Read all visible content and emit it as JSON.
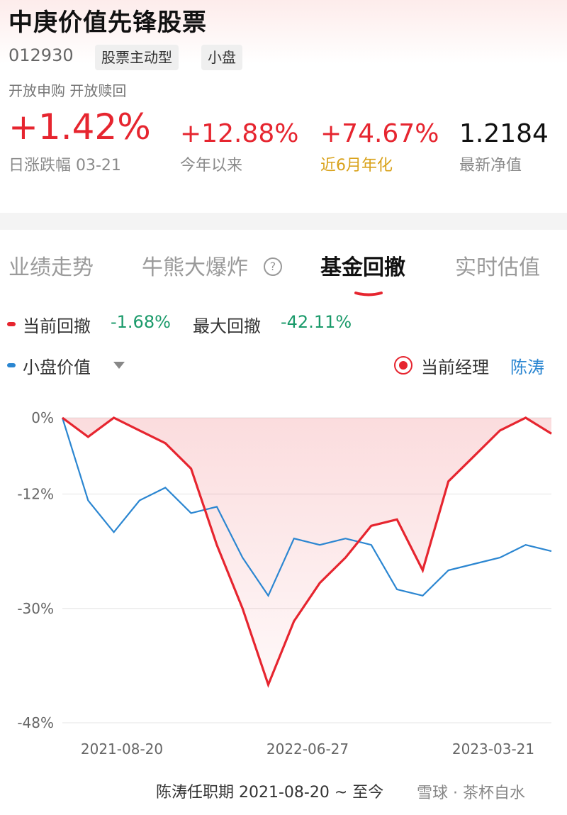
{
  "fund": {
    "name": "中庚价值先锋股票",
    "code": "012930",
    "tags": [
      "股票主动型",
      "小盘"
    ],
    "status": "开放申购 开放赎回"
  },
  "metrics": [
    {
      "value": "+1.42%",
      "label": "日涨跌幅 03-21"
    },
    {
      "value": "+12.88%",
      "label": "今年以来"
    },
    {
      "value": "+74.67%",
      "label": "近6月年化"
    },
    {
      "value": "1.2184",
      "label": "最新净值"
    }
  ],
  "tabs": [
    {
      "label": "业绩走势"
    },
    {
      "label": "牛熊大爆炸"
    },
    {
      "label": "基金回撤",
      "active": true
    },
    {
      "label": "实时估值"
    }
  ],
  "legend": {
    "current_label": "当前回撤",
    "current_value": "-1.68%",
    "max_label": "最大回撤",
    "max_value": "-42.11%",
    "benchmark_label": "小盘价值",
    "manager_label": "当前经理",
    "manager_name": "陈涛"
  },
  "colors": {
    "fund": "#e6252f",
    "benchmark": "#2b86d1",
    "negative": "#1a9a6a"
  },
  "chart_data": {
    "type": "line",
    "ylabel": "",
    "y_ticks": [
      "0%",
      "-12%",
      "-30%",
      "-48%"
    ],
    "y_range": [
      -48,
      0
    ],
    "x_ticks": [
      "2021-08-20",
      "2022-06-27",
      "2023-03-21"
    ],
    "x": [
      "2021-08-20",
      "2021-09-20",
      "2021-10-20",
      "2021-11-20",
      "2021-12-20",
      "2022-01-20",
      "2022-02-20",
      "2022-03-20",
      "2022-04-20",
      "2022-05-20",
      "2022-06-20",
      "2022-07-20",
      "2022-08-20",
      "2022-09-20",
      "2022-10-20",
      "2022-11-20",
      "2022-12-20",
      "2023-01-20",
      "2023-02-20",
      "2023-03-20"
    ],
    "series": [
      {
        "name": "当前回撤",
        "values": [
          0,
          -3,
          0,
          -2,
          -4,
          -8,
          -20,
          -30,
          -42,
          -32,
          -26,
          -22,
          -17,
          -16,
          -24,
          -10,
          -6,
          -2,
          0,
          -2.5
        ]
      },
      {
        "name": "小盘价值",
        "values": [
          0,
          -13,
          -18,
          -13,
          -11,
          -15,
          -14,
          -22,
          -28,
          -19,
          -20,
          -19,
          -20,
          -27,
          -28,
          -24,
          -23,
          -22,
          -20,
          -21
        ]
      }
    ]
  },
  "footer": "陈涛任职期 2021-08-20 ~ 至今",
  "watermark": "雪球 · 茶杯自水"
}
